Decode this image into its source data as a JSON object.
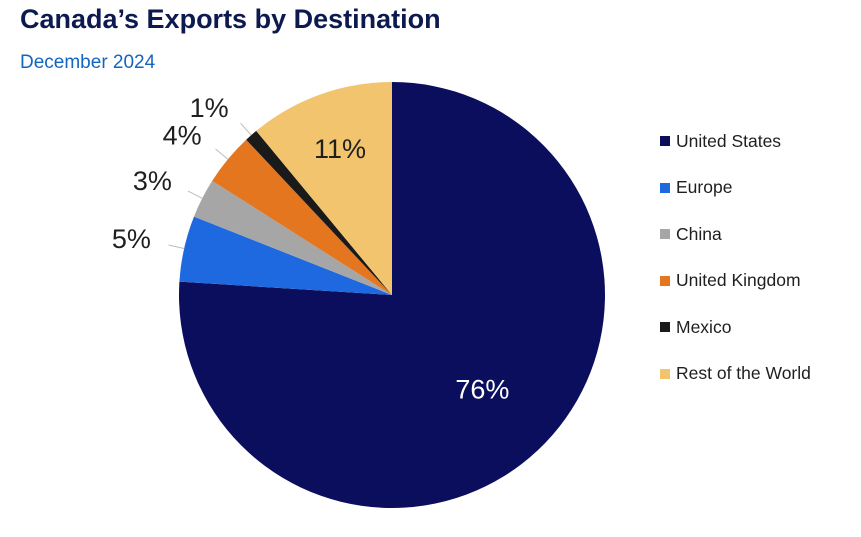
{
  "chart_data": {
    "type": "pie",
    "title": "Canada’s Exports by Destination",
    "subtitle": "December 2024",
    "categories": [
      "United States",
      "Europe",
      "China",
      "United Kingdom",
      "Mexico",
      "Rest of the World"
    ],
    "values": [
      76,
      5,
      3,
      4,
      1,
      11
    ],
    "value_labels": [
      "76%",
      "5%",
      "3%",
      "4%",
      "1%",
      "11%"
    ],
    "colors": [
      "#0b0e5c",
      "#1f69e0",
      "#a6a6a6",
      "#e4761f",
      "#1a1a1a",
      "#f2c46e"
    ],
    "label_colors": [
      "#ffffff",
      "#1f1f1f",
      "#1f1f1f",
      "#1f1f1f",
      "#1f1f1f",
      "#1f1f1f"
    ],
    "start": "12 o'clock",
    "direction": "clockwise",
    "legend_position": "right"
  }
}
